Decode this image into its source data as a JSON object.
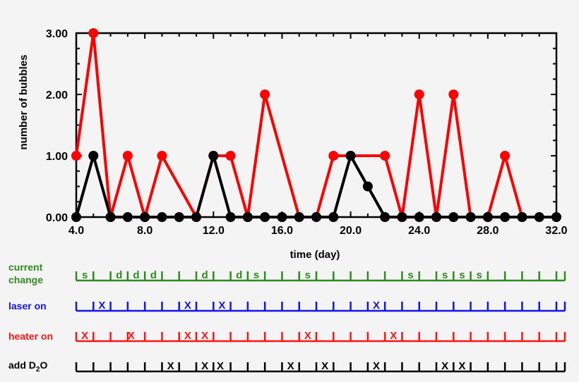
{
  "chart_data": {
    "type": "line",
    "xlabel": "time (day)",
    "ylabel": "number of bubbles",
    "xlim": [
      4,
      32
    ],
    "ylim": [
      0,
      3
    ],
    "xticks": [
      "4.0",
      "8.0",
      "12.0",
      "16.0",
      "20.0",
      "24.0",
      "28.0",
      "32.0"
    ],
    "yticks": [
      "0.00",
      "1.00",
      "2.00",
      "3.00"
    ],
    "grid": false,
    "series": [
      {
        "color": "#ff0000",
        "x": [
          4,
          5,
          6,
          7,
          8,
          9,
          11,
          12,
          13,
          14,
          15,
          17,
          18,
          19,
          20,
          22,
          23,
          24,
          25,
          26,
          27,
          28,
          29,
          30
        ],
        "y": [
          1,
          3,
          0,
          1,
          0,
          1,
          0,
          1,
          1,
          0,
          2,
          0,
          0,
          1,
          1,
          1,
          0,
          2,
          0,
          2,
          0,
          0,
          1,
          0
        ]
      },
      {
        "color": "#000000",
        "x": [
          4,
          5,
          6,
          7,
          8,
          9,
          10,
          11,
          12,
          13,
          14,
          15,
          16,
          17,
          18,
          19,
          20,
          21,
          22,
          23,
          24,
          25,
          26,
          27,
          28,
          29,
          30,
          31,
          32
        ],
        "y": [
          0,
          1,
          0,
          0,
          0,
          0,
          0,
          0,
          1,
          0,
          0,
          0,
          0,
          0,
          0,
          0,
          1,
          0.5,
          0,
          0,
          0,
          0,
          0,
          0,
          0,
          0,
          0,
          0,
          0
        ]
      }
    ]
  },
  "event_rows": [
    {
      "label_lines": [
        "current",
        "change"
      ],
      "color": "#2e8b1e",
      "marks": [
        {
          "day": 4.5,
          "text": "s"
        },
        {
          "day": 6.5,
          "text": "d"
        },
        {
          "day": 7.5,
          "text": "d"
        },
        {
          "day": 8.5,
          "text": "d"
        },
        {
          "day": 11.5,
          "text": "d"
        },
        {
          "day": 13.5,
          "text": "d"
        },
        {
          "day": 14.5,
          "text": "s"
        },
        {
          "day": 17.5,
          "text": "s"
        },
        {
          "day": 23.5,
          "text": "s"
        },
        {
          "day": 25.5,
          "text": "s"
        },
        {
          "day": 26.5,
          "text": "s"
        },
        {
          "day": 27.5,
          "text": "s"
        }
      ]
    },
    {
      "label_lines": [
        "laser on"
      ],
      "color": "#1414e6",
      "marks": [
        {
          "day": 5.5,
          "text": "X"
        },
        {
          "day": 10.5,
          "text": "X"
        },
        {
          "day": 12.5,
          "text": "X"
        },
        {
          "day": 21.5,
          "text": "X"
        }
      ]
    },
    {
      "label_lines": [
        "heater on"
      ],
      "color": "#ff1414",
      "marks": [
        {
          "day": 4.5,
          "text": "X"
        },
        {
          "day": 7.2,
          "text": "X"
        },
        {
          "day": 10.5,
          "text": "X"
        },
        {
          "day": 11.5,
          "text": "X"
        },
        {
          "day": 17.5,
          "text": "X"
        },
        {
          "day": 22.5,
          "text": "X"
        }
      ]
    },
    {
      "label_lines": [
        "add D",
        "2",
        "O"
      ],
      "color": "#000000",
      "marks": [
        {
          "day": 9.5,
          "text": "X"
        },
        {
          "day": 11.5,
          "text": "X"
        },
        {
          "day": 12.4,
          "text": "X"
        },
        {
          "day": 16.5,
          "text": "X"
        },
        {
          "day": 18.5,
          "text": "X"
        },
        {
          "day": 21.5,
          "text": "X"
        },
        {
          "day": 25.5,
          "text": "X"
        },
        {
          "day": 26.5,
          "text": "X"
        }
      ]
    }
  ]
}
